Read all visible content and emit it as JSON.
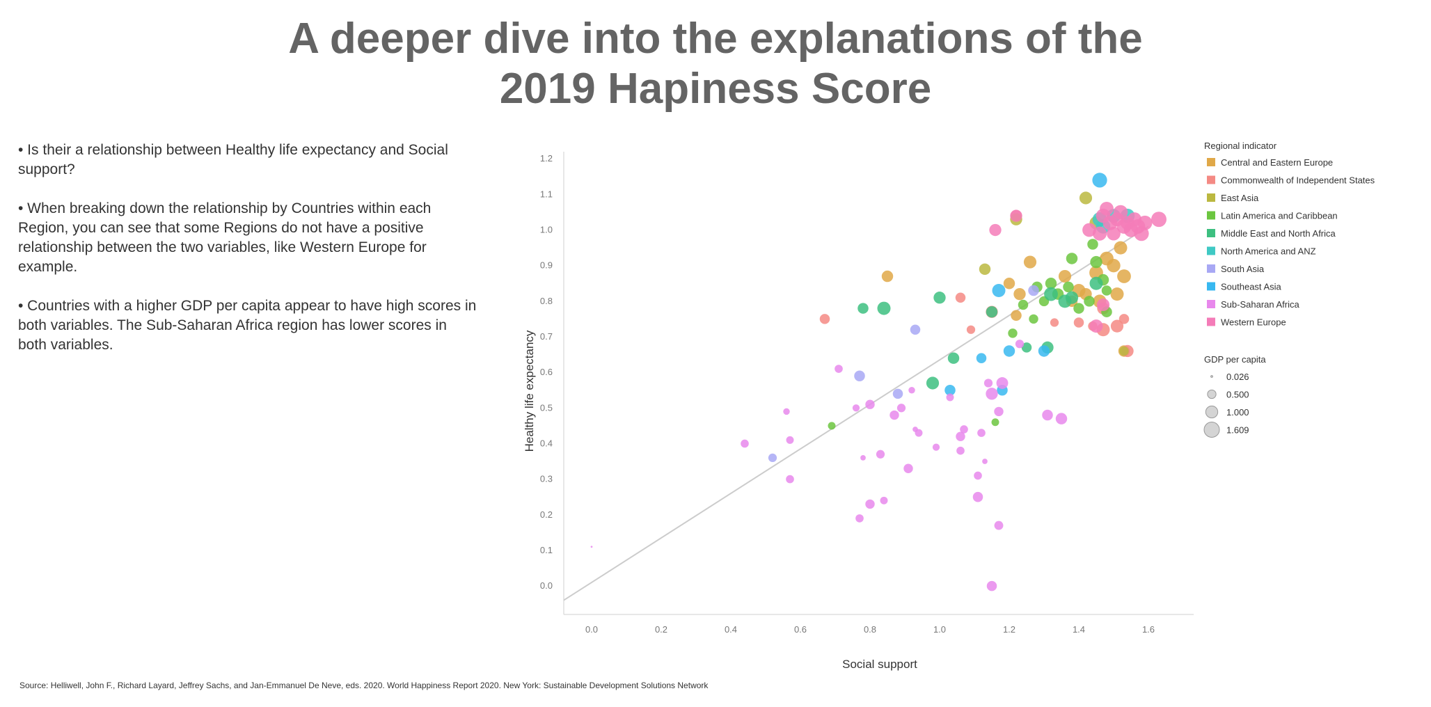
{
  "title": {
    "line1": "A deeper dive into the explanations of the",
    "line2": "2019 Hapiness Score"
  },
  "bullets": [
    "• Is their a relationship between Healthy life expectancy and Social support?",
    "• When breaking down the relationship by Countries within each Region, you can see that some Regions do not have a positive relationship between the two variables, like Western Europe for example.",
    "• Countries with a higher GDP per capita appear to have high scores in both variables. The Sub-Saharan Africa region has lower scores in both variables."
  ],
  "source": "Source: Helliwell, John F., Richard Layard, Jeffrey Sachs, and Jan-Emmanuel De Neve, eds. 2020. World Happiness Report 2020. New York: Sustainable Development Solutions Network",
  "chart_data": {
    "type": "scatter",
    "xlabel": "Social support",
    "ylabel": "Healthy life expectancy",
    "xlim": [
      -0.08,
      1.73
    ],
    "ylim": [
      -0.08,
      1.22
    ],
    "xticks": [
      "0.0",
      "0.2",
      "0.4",
      "0.6",
      "0.8",
      "1.0",
      "1.2",
      "1.4",
      "1.6"
    ],
    "yticks": [
      "0.0",
      "0.1",
      "0.2",
      "0.3",
      "0.4",
      "0.5",
      "0.6",
      "0.7",
      "0.8",
      "0.9",
      "1.0",
      "1.1",
      "1.2"
    ],
    "trendline": {
      "x": [
        -0.08,
        1.6
      ],
      "y": [
        -0.04,
        1.01
      ]
    },
    "legend_position": "right",
    "color_legend": {
      "title": "Regional indicator",
      "items": [
        {
          "name": "Central and Eastern Europe",
          "color": "#E0A848"
        },
        {
          "name": "Commonwealth of Independent States",
          "color": "#F48A84"
        },
        {
          "name": "East Asia",
          "color": "#BBB840"
        },
        {
          "name": "Latin America and Caribbean",
          "color": "#6CC640"
        },
        {
          "name": "Middle East and North Africa",
          "color": "#3DBF80"
        },
        {
          "name": "North America and ANZ",
          "color": "#3FC9C4"
        },
        {
          "name": "South Asia",
          "color": "#A8A8F4"
        },
        {
          "name": "Southeast Asia",
          "color": "#38B8F0"
        },
        {
          "name": "Sub-Saharan Africa",
          "color": "#E888EC"
        },
        {
          "name": "Western Europe",
          "color": "#F47CB8"
        }
      ]
    },
    "size_legend": {
      "title": "GDP per capita",
      "items": [
        {
          "label": "0.026",
          "value": 0.026
        },
        {
          "label": "0.500",
          "value": 0.5
        },
        {
          "label": "1.000",
          "value": 1.0
        },
        {
          "label": "1.609",
          "value": 1.609
        }
      ]
    },
    "points": [
      {
        "region": 0,
        "x": 1.4,
        "y": 0.83,
        "gdp": 1.2
      },
      {
        "region": 0,
        "x": 1.45,
        "y": 0.88,
        "gdp": 1.3
      },
      {
        "region": 0,
        "x": 1.5,
        "y": 0.9,
        "gdp": 1.25
      },
      {
        "region": 0,
        "x": 1.48,
        "y": 0.92,
        "gdp": 1.3
      },
      {
        "region": 0,
        "x": 1.52,
        "y": 0.95,
        "gdp": 1.2
      },
      {
        "region": 0,
        "x": 1.53,
        "y": 0.87,
        "gdp": 1.3
      },
      {
        "region": 0,
        "x": 1.51,
        "y": 0.82,
        "gdp": 1.2
      },
      {
        "region": 0,
        "x": 1.46,
        "y": 0.8,
        "gdp": 1.2
      },
      {
        "region": 0,
        "x": 1.42,
        "y": 0.82,
        "gdp": 1.0
      },
      {
        "region": 0,
        "x": 1.36,
        "y": 0.87,
        "gdp": 1.1
      },
      {
        "region": 0,
        "x": 1.26,
        "y": 0.91,
        "gdp": 1.1
      },
      {
        "region": 0,
        "x": 1.23,
        "y": 0.82,
        "gdp": 1.0
      },
      {
        "region": 0,
        "x": 1.2,
        "y": 0.85,
        "gdp": 0.9
      },
      {
        "region": 0,
        "x": 1.22,
        "y": 0.76,
        "gdp": 0.8
      },
      {
        "region": 0,
        "x": 0.85,
        "y": 0.87,
        "gdp": 0.9
      },
      {
        "region": 0,
        "x": 1.53,
        "y": 0.66,
        "gdp": 0.9
      },
      {
        "region": 0,
        "x": 1.38,
        "y": 0.8,
        "gdp": 0.9
      },
      {
        "region": 1,
        "x": 0.67,
        "y": 0.75,
        "gdp": 0.7
      },
      {
        "region": 1,
        "x": 1.06,
        "y": 0.81,
        "gdp": 0.7
      },
      {
        "region": 1,
        "x": 1.09,
        "y": 0.72,
        "gdp": 0.5
      },
      {
        "region": 1,
        "x": 1.15,
        "y": 0.77,
        "gdp": 1.0
      },
      {
        "region": 1,
        "x": 1.22,
        "y": 1.04,
        "gdp": 0.9
      },
      {
        "region": 1,
        "x": 1.33,
        "y": 0.74,
        "gdp": 0.5
      },
      {
        "region": 1,
        "x": 1.4,
        "y": 0.74,
        "gdp": 0.7
      },
      {
        "region": 1,
        "x": 1.44,
        "y": 0.73,
        "gdp": 0.6
      },
      {
        "region": 1,
        "x": 1.47,
        "y": 0.72,
        "gdp": 1.2
      },
      {
        "region": 1,
        "x": 1.51,
        "y": 0.73,
        "gdp": 1.1
      },
      {
        "region": 1,
        "x": 1.53,
        "y": 0.75,
        "gdp": 0.7
      },
      {
        "region": 1,
        "x": 1.54,
        "y": 0.66,
        "gdp": 1.0
      },
      {
        "region": 1,
        "x": 1.47,
        "y": 0.78,
        "gdp": 1.0
      },
      {
        "region": 2,
        "x": 1.13,
        "y": 0.89,
        "gdp": 0.9
      },
      {
        "region": 2,
        "x": 1.22,
        "y": 1.03,
        "gdp": 1.0
      },
      {
        "region": 2,
        "x": 1.42,
        "y": 1.09,
        "gdp": 1.1
      },
      {
        "region": 2,
        "x": 1.45,
        "y": 1.02,
        "gdp": 1.2
      },
      {
        "region": 2,
        "x": 1.53,
        "y": 0.66,
        "gdp": 0.6
      },
      {
        "region": 3,
        "x": 0.69,
        "y": 0.45,
        "gdp": 0.4
      },
      {
        "region": 3,
        "x": 1.16,
        "y": 0.46,
        "gdp": 0.4
      },
      {
        "region": 3,
        "x": 1.21,
        "y": 0.71,
        "gdp": 0.6
      },
      {
        "region": 3,
        "x": 1.24,
        "y": 0.79,
        "gdp": 0.7
      },
      {
        "region": 3,
        "x": 1.27,
        "y": 0.75,
        "gdp": 0.6
      },
      {
        "region": 3,
        "x": 1.28,
        "y": 0.84,
        "gdp": 0.8
      },
      {
        "region": 3,
        "x": 1.32,
        "y": 0.85,
        "gdp": 0.9
      },
      {
        "region": 3,
        "x": 1.34,
        "y": 0.82,
        "gdp": 0.9
      },
      {
        "region": 3,
        "x": 1.37,
        "y": 0.84,
        "gdp": 0.8
      },
      {
        "region": 3,
        "x": 1.38,
        "y": 0.92,
        "gdp": 0.9
      },
      {
        "region": 3,
        "x": 1.4,
        "y": 0.78,
        "gdp": 0.8
      },
      {
        "region": 3,
        "x": 1.44,
        "y": 0.96,
        "gdp": 0.8
      },
      {
        "region": 3,
        "x": 1.45,
        "y": 0.91,
        "gdp": 1.0
      },
      {
        "region": 3,
        "x": 1.47,
        "y": 0.86,
        "gdp": 0.9
      },
      {
        "region": 3,
        "x": 1.48,
        "y": 0.83,
        "gdp": 0.7
      },
      {
        "region": 3,
        "x": 1.48,
        "y": 0.77,
        "gdp": 0.8
      },
      {
        "region": 3,
        "x": 1.43,
        "y": 0.8,
        "gdp": 0.8
      },
      {
        "region": 3,
        "x": 1.3,
        "y": 0.8,
        "gdp": 0.7
      },
      {
        "region": 4,
        "x": 0.78,
        "y": 0.78,
        "gdp": 0.8
      },
      {
        "region": 4,
        "x": 0.84,
        "y": 0.78,
        "gdp": 1.2
      },
      {
        "region": 4,
        "x": 0.98,
        "y": 0.57,
        "gdp": 1.1
      },
      {
        "region": 4,
        "x": 1.0,
        "y": 0.81,
        "gdp": 1.0
      },
      {
        "region": 4,
        "x": 1.04,
        "y": 0.64,
        "gdp": 0.9
      },
      {
        "region": 4,
        "x": 1.15,
        "y": 0.77,
        "gdp": 0.9
      },
      {
        "region": 4,
        "x": 1.25,
        "y": 0.67,
        "gdp": 0.7
      },
      {
        "region": 4,
        "x": 1.31,
        "y": 0.67,
        "gdp": 1.0
      },
      {
        "region": 4,
        "x": 1.32,
        "y": 0.82,
        "gdp": 1.3
      },
      {
        "region": 4,
        "x": 1.36,
        "y": 0.8,
        "gdp": 1.2
      },
      {
        "region": 4,
        "x": 1.38,
        "y": 0.81,
        "gdp": 1.1
      },
      {
        "region": 4,
        "x": 1.45,
        "y": 0.85,
        "gdp": 1.2
      },
      {
        "region": 5,
        "x": 1.46,
        "y": 1.03,
        "gdp": 1.4
      },
      {
        "region": 5,
        "x": 1.5,
        "y": 1.04,
        "gdp": 1.3
      },
      {
        "region": 5,
        "x": 1.54,
        "y": 1.04,
        "gdp": 1.4
      },
      {
        "region": 5,
        "x": 1.47,
        "y": 1.01,
        "gdp": 1.4
      },
      {
        "region": 6,
        "x": 0.77,
        "y": 0.59,
        "gdp": 0.8
      },
      {
        "region": 6,
        "x": 0.88,
        "y": 0.54,
        "gdp": 0.7
      },
      {
        "region": 6,
        "x": 0.93,
        "y": 0.72,
        "gdp": 0.7
      },
      {
        "region": 6,
        "x": 0.52,
        "y": 0.36,
        "gdp": 0.5
      },
      {
        "region": 6,
        "x": 1.27,
        "y": 0.83,
        "gdp": 0.8
      },
      {
        "region": 7,
        "x": 1.03,
        "y": 0.55,
        "gdp": 0.8
      },
      {
        "region": 7,
        "x": 1.12,
        "y": 0.64,
        "gdp": 0.7
      },
      {
        "region": 7,
        "x": 1.17,
        "y": 0.83,
        "gdp": 1.2
      },
      {
        "region": 7,
        "x": 1.18,
        "y": 0.55,
        "gdp": 0.8
      },
      {
        "region": 7,
        "x": 1.2,
        "y": 0.66,
        "gdp": 0.9
      },
      {
        "region": 7,
        "x": 1.3,
        "y": 0.66,
        "gdp": 0.9
      },
      {
        "region": 7,
        "x": 1.46,
        "y": 1.14,
        "gdp": 1.5
      },
      {
        "region": 8,
        "x": 0.44,
        "y": 0.4,
        "gdp": 0.45
      },
      {
        "region": 8,
        "x": 0.56,
        "y": 0.49,
        "gdp": 0.3
      },
      {
        "region": 8,
        "x": 0.57,
        "y": 0.41,
        "gdp": 0.4
      },
      {
        "region": 8,
        "x": 0.57,
        "y": 0.3,
        "gdp": 0.45
      },
      {
        "region": 8,
        "x": 0.71,
        "y": 0.61,
        "gdp": 0.45
      },
      {
        "region": 8,
        "x": 0.76,
        "y": 0.5,
        "gdp": 0.35
      },
      {
        "region": 8,
        "x": 0.77,
        "y": 0.19,
        "gdp": 0.45
      },
      {
        "region": 8,
        "x": 0.78,
        "y": 0.36,
        "gdp": 0.2
      },
      {
        "region": 8,
        "x": 0.8,
        "y": 0.51,
        "gdp": 0.6
      },
      {
        "region": 8,
        "x": 0.8,
        "y": 0.23,
        "gdp": 0.6
      },
      {
        "region": 8,
        "x": 0.83,
        "y": 0.37,
        "gdp": 0.5
      },
      {
        "region": 8,
        "x": 0.84,
        "y": 0.24,
        "gdp": 0.4
      },
      {
        "region": 8,
        "x": 0.87,
        "y": 0.48,
        "gdp": 0.6
      },
      {
        "region": 8,
        "x": 0.89,
        "y": 0.5,
        "gdp": 0.5
      },
      {
        "region": 8,
        "x": 0.91,
        "y": 0.33,
        "gdp": 0.6
      },
      {
        "region": 8,
        "x": 0.92,
        "y": 0.55,
        "gdp": 0.3
      },
      {
        "region": 8,
        "x": 0.93,
        "y": 0.44,
        "gdp": 0.2
      },
      {
        "region": 8,
        "x": 0.94,
        "y": 0.43,
        "gdp": 0.4
      },
      {
        "region": 8,
        "x": 0.99,
        "y": 0.39,
        "gdp": 0.35
      },
      {
        "region": 8,
        "x": 1.03,
        "y": 0.53,
        "gdp": 0.4
      },
      {
        "region": 8,
        "x": 1.06,
        "y": 0.38,
        "gdp": 0.45
      },
      {
        "region": 8,
        "x": 1.06,
        "y": 0.42,
        "gdp": 0.6
      },
      {
        "region": 8,
        "x": 1.07,
        "y": 0.44,
        "gdp": 0.45
      },
      {
        "region": 8,
        "x": 1.11,
        "y": 0.31,
        "gdp": 0.45
      },
      {
        "region": 8,
        "x": 1.11,
        "y": 0.25,
        "gdp": 0.7
      },
      {
        "region": 8,
        "x": 1.12,
        "y": 0.43,
        "gdp": 0.45
      },
      {
        "region": 8,
        "x": 1.13,
        "y": 0.35,
        "gdp": 0.2
      },
      {
        "region": 8,
        "x": 1.14,
        "y": 0.57,
        "gdp": 0.5
      },
      {
        "region": 8,
        "x": 1.15,
        "y": 0.54,
        "gdp": 1.0
      },
      {
        "region": 8,
        "x": 1.15,
        "y": 0.0,
        "gdp": 0.7
      },
      {
        "region": 8,
        "x": 1.17,
        "y": 0.49,
        "gdp": 0.6
      },
      {
        "region": 8,
        "x": 1.17,
        "y": 0.17,
        "gdp": 0.55
      },
      {
        "region": 8,
        "x": 1.18,
        "y": 0.57,
        "gdp": 0.95
      },
      {
        "region": 8,
        "x": 1.31,
        "y": 0.48,
        "gdp": 0.8
      },
      {
        "region": 8,
        "x": 1.35,
        "y": 0.47,
        "gdp": 0.9
      },
      {
        "region": 8,
        "x": 1.23,
        "y": 0.68,
        "gdp": 0.5
      },
      {
        "region": 8,
        "x": 0.0,
        "y": 0.11,
        "gdp": 0.026
      },
      {
        "region": 9,
        "x": 1.16,
        "y": 1.0,
        "gdp": 1.0
      },
      {
        "region": 9,
        "x": 1.22,
        "y": 1.04,
        "gdp": 1.0
      },
      {
        "region": 9,
        "x": 1.43,
        "y": 1.0,
        "gdp": 1.3
      },
      {
        "region": 9,
        "x": 1.46,
        "y": 0.99,
        "gdp": 1.35
      },
      {
        "region": 9,
        "x": 1.47,
        "y": 1.04,
        "gdp": 1.4
      },
      {
        "region": 9,
        "x": 1.48,
        "y": 1.06,
        "gdp": 1.3
      },
      {
        "region": 9,
        "x": 1.49,
        "y": 1.02,
        "gdp": 1.45
      },
      {
        "region": 9,
        "x": 1.5,
        "y": 0.99,
        "gdp": 1.3
      },
      {
        "region": 9,
        "x": 1.51,
        "y": 1.03,
        "gdp": 1.35
      },
      {
        "region": 9,
        "x": 1.52,
        "y": 1.05,
        "gdp": 1.4
      },
      {
        "region": 9,
        "x": 1.53,
        "y": 1.01,
        "gdp": 1.45
      },
      {
        "region": 9,
        "x": 1.54,
        "y": 1.02,
        "gdp": 1.35
      },
      {
        "region": 9,
        "x": 1.55,
        "y": 1.0,
        "gdp": 1.4
      },
      {
        "region": 9,
        "x": 1.56,
        "y": 1.03,
        "gdp": 1.35
      },
      {
        "region": 9,
        "x": 1.57,
        "y": 1.01,
        "gdp": 1.45
      },
      {
        "region": 9,
        "x": 1.58,
        "y": 0.99,
        "gdp": 1.5
      },
      {
        "region": 9,
        "x": 1.59,
        "y": 1.02,
        "gdp": 1.45
      },
      {
        "region": 9,
        "x": 1.63,
        "y": 1.03,
        "gdp": 1.6
      },
      {
        "region": 9,
        "x": 1.47,
        "y": 0.79,
        "gdp": 1.1
      },
      {
        "region": 9,
        "x": 1.45,
        "y": 0.73,
        "gdp": 1.2
      }
    ]
  }
}
